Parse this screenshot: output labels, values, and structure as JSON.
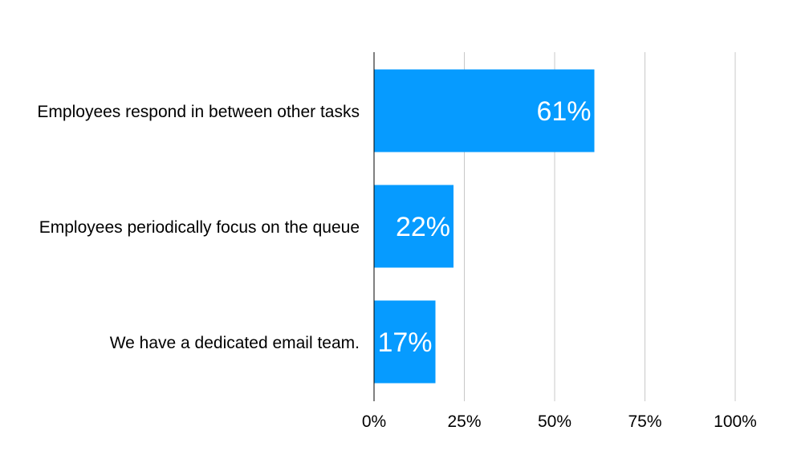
{
  "chart_data": {
    "type": "bar",
    "orientation": "horizontal",
    "categories": [
      "Employees respond in between other tasks",
      "Employees periodically focus on the queue",
      "We have a dedicated email team."
    ],
    "values": [
      61,
      22,
      17
    ],
    "value_labels": [
      "61%",
      "22%",
      "17%"
    ],
    "xlim": [
      0,
      100
    ],
    "xticks": [
      0,
      25,
      50,
      75,
      100
    ],
    "xtick_labels": [
      "0%",
      "25%",
      "50%",
      "75%",
      "100%"
    ],
    "grid": "vertical",
    "legend": "none",
    "colors": {
      "bar": "#069bff",
      "grid": "#c8c8c8",
      "axis": "#000000",
      "text": "#000000",
      "value_label": "#ffffff"
    }
  }
}
